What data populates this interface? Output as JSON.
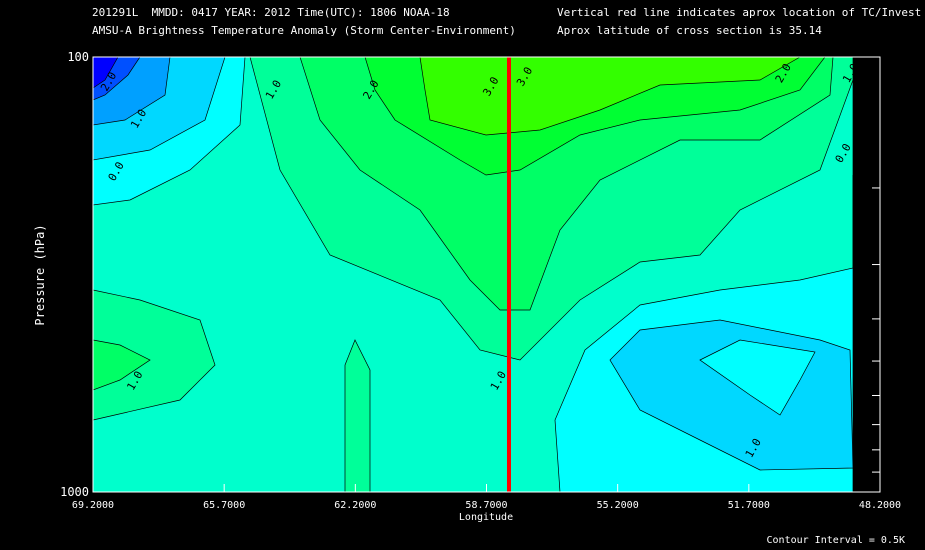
{
  "header": {
    "line1_left": "201291L  MMDD: 0417 YEAR: 2012 Time(UTC): 1806 NOAA-18",
    "line2_left": "AMSU-A Brightness Temperature Anomaly (Storm Center-Environment)",
    "line1_right": "Vertical red line indicates aprox location of TC/Invest",
    "line2_right": "Aprox latitude of cross section is 35.14"
  },
  "footer": {
    "contour_interval": "Contour Interval = 0.5K"
  },
  "colors": {
    "storm_line": "#ff0000",
    "levels": [
      "#0000ff",
      "#0050ff",
      "#00a0ff",
      "#00d8ff",
      "#00ffff",
      "#00ffcc",
      "#00ff99",
      "#00ff66",
      "#00ff33",
      "#33ff00"
    ]
  },
  "chart_data": {
    "type": "contour",
    "title": "AMSU-A Brightness Temperature Anomaly (Storm Center-Environment)",
    "xlabel": "Longitude",
    "ylabel": "Pressure (hPa)",
    "x_ticks": [
      "69.2000",
      "65.7000",
      "62.2000",
      "58.7000",
      "55.2000",
      "51.7000",
      "48.2000"
    ],
    "y_ticks": [
      "100",
      "1000"
    ],
    "xlim": [
      69.2,
      48.2
    ],
    "ylim": [
      1000,
      100
    ],
    "y_scale": "log",
    "storm_longitude": 58.1,
    "contour_interval": 0.5,
    "levels": [
      -2.5,
      -2.0,
      -1.5,
      -1.0,
      -0.5,
      0.0,
      0.5,
      1.0,
      1.5,
      2.0
    ],
    "contour_labels": [
      {
        "text": "2.0",
        "lon": 68.7,
        "p": 115
      },
      {
        "text": "1.0",
        "lon": 67.9,
        "p": 140
      },
      {
        "text": "0.0",
        "lon": 68.5,
        "p": 185
      },
      {
        "text": "1.0",
        "lon": 64.3,
        "p": 120
      },
      {
        "text": "2.0",
        "lon": 61.7,
        "p": 120
      },
      {
        "text": "3.0",
        "lon": 58.5,
        "p": 118
      },
      {
        "text": "3.0",
        "lon": 57.6,
        "p": 112
      },
      {
        "text": "2.0",
        "lon": 50.7,
        "p": 110
      },
      {
        "text": "1.0",
        "lon": 48.9,
        "p": 110
      },
      {
        "text": "0.0",
        "lon": 49.1,
        "p": 168
      },
      {
        "text": "1.0",
        "lon": 68.0,
        "p": 560
      },
      {
        "text": "1.0",
        "lon": 58.3,
        "p": 560
      },
      {
        "text": "1.0",
        "lon": 51.5,
        "p": 800
      }
    ]
  }
}
